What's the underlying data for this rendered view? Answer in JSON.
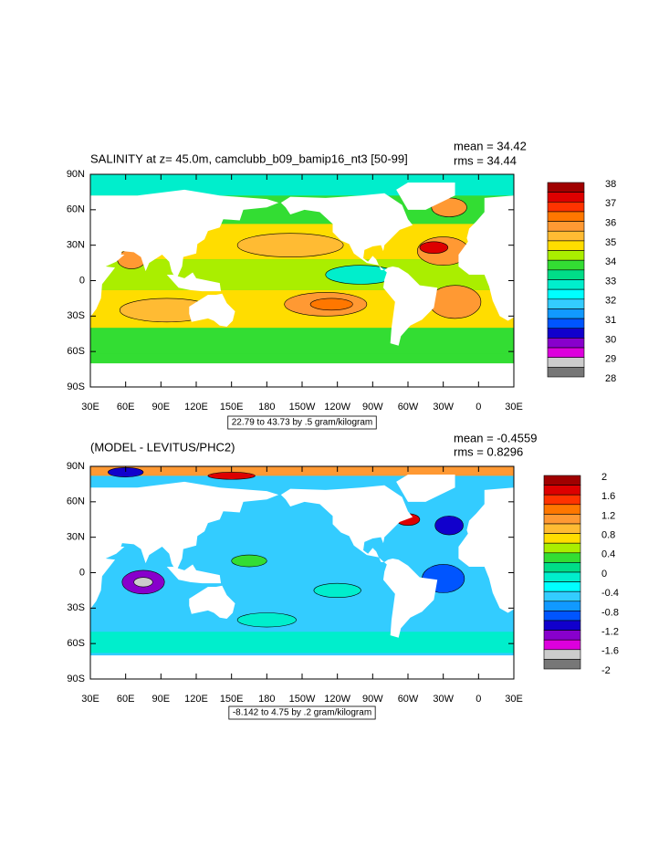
{
  "panels": [
    {
      "title": "SALINITY at z=  45.0m, camclubb_b09_bamip16_nt3 [50-99]",
      "mean": "mean = 34.42",
      "rms": "rms = 34.44",
      "contour_info": "22.79 to 43.73 by .5 gram/kilogram",
      "colorbar_labels": [
        "38",
        "37",
        "36",
        "35",
        "34",
        "33",
        "32",
        "31",
        "30",
        "29",
        "28"
      ]
    },
    {
      "title": "(MODEL - LEVITUS/PHC2)",
      "mean": "mean = -0.4559",
      "rms": "rms = 0.8296",
      "contour_info": "-8.142 to 4.75 by .2 gram/kilogram",
      "colorbar_labels": [
        "2",
        "1.6",
        "1.2",
        "0.8",
        "0.4",
        "0",
        "-0.4",
        "-0.8",
        "-1.2",
        "-1.6",
        "-2"
      ]
    }
  ],
  "colorbar_colors": [
    "#a00000",
    "#dd0000",
    "#ff3300",
    "#ff7700",
    "#ff9933",
    "#ffbb33",
    "#ffdd00",
    "#aaee00",
    "#33dd33",
    "#00dd88",
    "#00eecc",
    "#00ffff",
    "#33ccff",
    "#1199ff",
    "#0055ff",
    "#1100cc",
    "#8800cc",
    "#dd00dd",
    "#cccccc",
    "#777777"
  ],
  "lat_labels": [
    "90N",
    "60N",
    "30N",
    "0",
    "30S",
    "60S",
    "90S"
  ],
  "lon_labels": [
    "30E",
    "60E",
    "90E",
    "120E",
    "150E",
    "180",
    "150W",
    "120W",
    "90W",
    "60W",
    "30W",
    "0",
    "30E"
  ]
}
